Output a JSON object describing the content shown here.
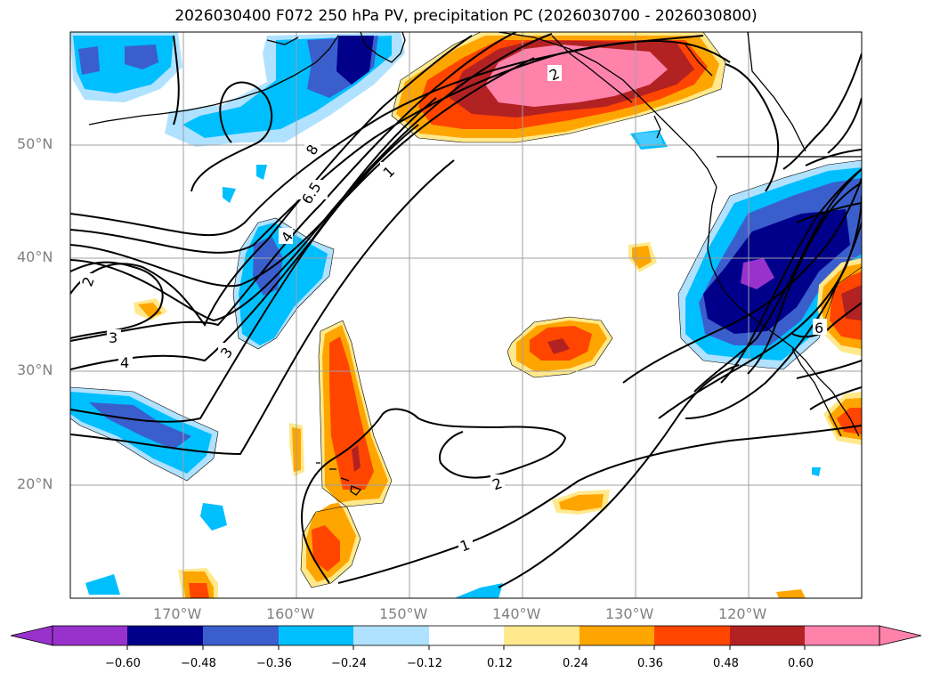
{
  "title": "2026030400 F072 250 hPa PV, precipitation PC (2026030700 - 2026030800)",
  "latitude_labels": [
    "50°N",
    "40°N",
    "30°N",
    "20°N"
  ],
  "longitude_labels": [
    "170°W",
    "160°W",
    "150°W",
    "140°W",
    "130°W",
    "120°W"
  ],
  "colorbar": {
    "ticks": [
      "−0.60",
      "−0.48",
      "−0.36",
      "−0.24",
      "−0.12",
      "0.12",
      "0.24",
      "0.36",
      "0.48",
      "0.60"
    ],
    "colors": [
      "#9932cc",
      "#00008b",
      "#3a5fcd",
      "#00bfff",
      "#b0e2ff",
      "#ffffff",
      "#ffe98c",
      "#ffa500",
      "#ff4500",
      "#b22222",
      "#ff82ab"
    ],
    "extend": "both"
  },
  "pv_contour_labels": [
    "8",
    "6.5",
    "1",
    "2",
    "4",
    "3",
    "3",
    "4",
    "2",
    "2",
    "1",
    "6",
    "2",
    "2"
  ],
  "colors": {
    "grid": "#a0a0a0",
    "coast": "#000000",
    "contour": "#000000"
  }
}
